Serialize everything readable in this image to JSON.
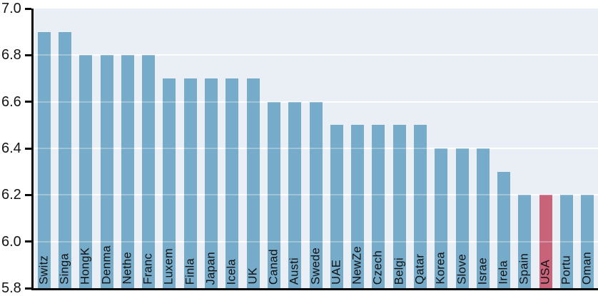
{
  "chart_data": {
    "type": "bar",
    "title": "",
    "xlabel": "",
    "ylabel": "",
    "categories": [
      "Switz",
      "Singa",
      "HongK",
      "Denma",
      "Nethe",
      "Franc",
      "Luxem",
      "Finla",
      "Japan",
      "Icela",
      "UK",
      "Canad",
      "Austi",
      "Swede",
      "UAE",
      "NewZe",
      "Czech",
      "Belgi",
      "Qatar",
      "Korea",
      "Slove",
      "Israe",
      "Irela",
      "Spain",
      "USA",
      "Portu",
      "Oman"
    ],
    "values": [
      6.9,
      6.9,
      6.8,
      6.8,
      6.8,
      6.8,
      6.7,
      6.7,
      6.7,
      6.7,
      6.7,
      6.6,
      6.6,
      6.6,
      6.5,
      6.5,
      6.5,
      6.5,
      6.5,
      6.4,
      6.4,
      6.4,
      6.3,
      6.2,
      6.2,
      6.2,
      6.2
    ],
    "highlight_category": "USA",
    "highlight_index": 24,
    "ylim": [
      5.8,
      7.0
    ],
    "ytick_labels": [
      "7.0",
      "6.8",
      "6.6",
      "6.4",
      "6.2",
      "6.0",
      "5.8"
    ],
    "ytick_values": [
      7.0,
      6.8,
      6.6,
      6.4,
      6.2,
      6.0,
      5.8
    ],
    "gridline_values": [
      6.8,
      6.6,
      6.4,
      6.2,
      6.0
    ],
    "grid": "horizontal",
    "legend_position": "none",
    "x_labels_rotation_deg": 90,
    "colors": {
      "bar": "#76abc9",
      "highlight": "#c8647a",
      "plot_background": "#e9eff4",
      "gridline": "#ffffff",
      "axis": "#0a0a0a",
      "label_text": "#111111"
    }
  }
}
